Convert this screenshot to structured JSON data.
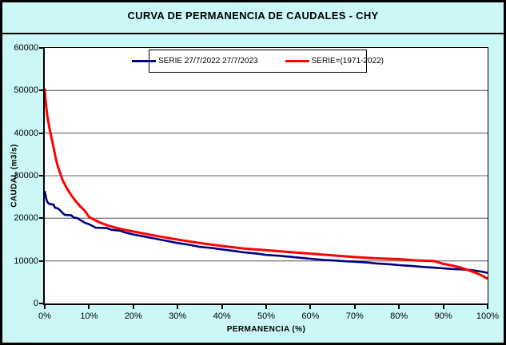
{
  "title": "CURVA DE PERMANENCIA DE CAUDALES - CHY",
  "colors": {
    "background": "#CCF7F7",
    "plot_background": "#FFFFFF",
    "grid": "#808080",
    "axis": "#000000",
    "series1": "#000080",
    "series2": "#FF0000"
  },
  "axes": {
    "x_ticks": [
      "0%",
      "10%",
      "20%",
      "30%",
      "40%",
      "50%",
      "60%",
      "70%",
      "80%",
      "90%",
      "100%"
    ],
    "y_ticks": [
      "0",
      "10000",
      "20000",
      "30000",
      "40000",
      "50000",
      "60000"
    ]
  },
  "chart_data": {
    "type": "line",
    "title": "CURVA DE PERMANENCIA DE CAUDALES - CHY",
    "xlabel": "PERMANENCIA (%)",
    "ylabel": "CAUDAL (m3/s)",
    "xlim": [
      0,
      100
    ],
    "ylim": [
      0,
      60000
    ],
    "x_tick_step": 10,
    "y_tick_step": 10000,
    "grid": "horizontal",
    "legend_position": "top-center",
    "series": [
      {
        "name": "SERIE 27/7/2022 27/7/2023",
        "color": "#000080",
        "x": [
          0,
          0.3,
          0.6,
          1,
          2,
          2.3,
          3,
          3.5,
          4,
          4.5,
          6,
          6.5,
          7.5,
          8,
          9,
          10,
          11,
          11.5,
          14,
          15,
          17,
          18,
          20,
          22,
          25,
          28,
          30,
          33,
          35,
          38,
          40,
          43,
          45,
          48,
          50,
          53,
          55,
          58,
          60,
          61,
          63,
          65,
          68,
          70,
          73,
          75,
          78,
          80,
          83,
          85,
          88,
          90,
          92,
          94,
          96,
          98,
          100
        ],
        "y": [
          26400,
          24700,
          23800,
          23400,
          23200,
          22500,
          22300,
          21800,
          21300,
          20800,
          20700,
          20200,
          20000,
          19600,
          19000,
          18600,
          18100,
          17800,
          17700,
          17300,
          17100,
          16700,
          16200,
          15800,
          15200,
          14600,
          14200,
          13700,
          13300,
          13000,
          12700,
          12300,
          12000,
          11700,
          11400,
          11200,
          11000,
          10700,
          10500,
          10400,
          10200,
          10100,
          9900,
          9800,
          9600,
          9400,
          9200,
          9000,
          8800,
          8600,
          8400,
          8250,
          8100,
          8000,
          7900,
          7600,
          7200
        ]
      },
      {
        "name": "SERIE=(1971-2022)",
        "color": "#FF0000",
        "x": [
          0,
          0.2,
          0.5,
          1,
          1.5,
          2,
          2.5,
          3,
          4,
          5,
          6,
          7,
          8,
          9,
          10,
          12,
          14,
          16,
          18,
          20,
          25,
          30,
          35,
          40,
          45,
          50,
          55,
          60,
          65,
          70,
          75,
          80,
          84,
          88,
          90,
          92,
          94,
          96,
          98,
          99,
          100
        ],
        "y": [
          50500,
          47500,
          44500,
          41500,
          39000,
          36500,
          34000,
          32000,
          29000,
          27000,
          25400,
          24000,
          22800,
          21800,
          20300,
          19200,
          18400,
          17800,
          17300,
          16900,
          15900,
          15000,
          14200,
          13500,
          12900,
          12500,
          12100,
          11700,
          11300,
          10900,
          10600,
          10400,
          10100,
          9950,
          9300,
          8900,
          8400,
          7700,
          6900,
          6400,
          5800
        ]
      }
    ]
  }
}
